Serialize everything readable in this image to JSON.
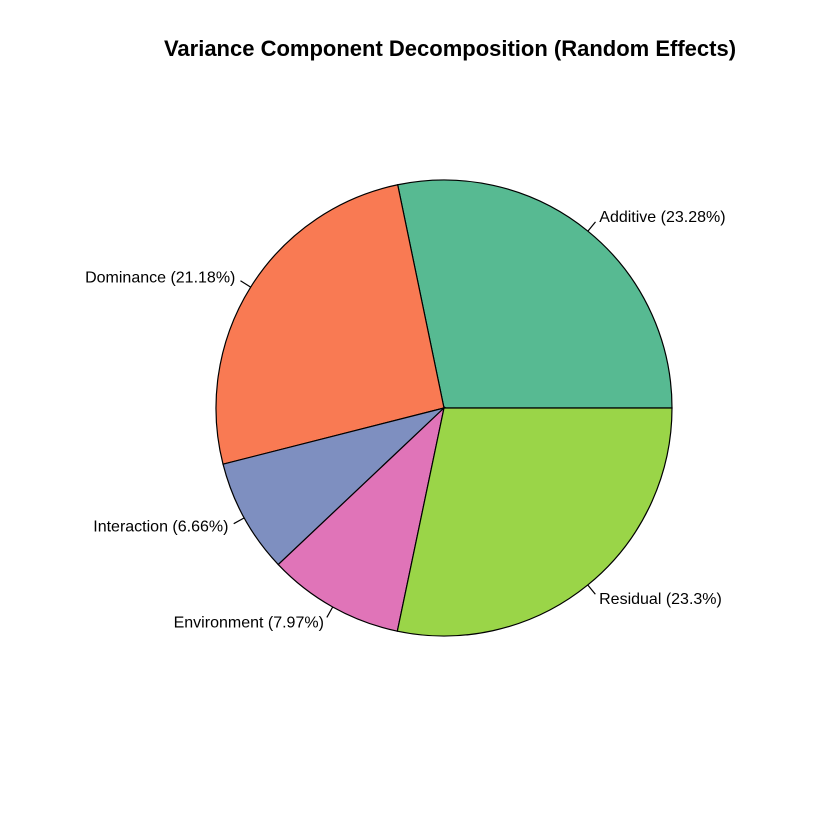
{
  "chart_data": {
    "type": "pie",
    "title": "Variance Component Decomposition (Random Effects)",
    "start_angle_deg": 0,
    "direction": "counterclockwise",
    "slices": [
      {
        "name": "Additive",
        "value": 23.28,
        "label": "Additive (23.28%)",
        "color": "#57BA92"
      },
      {
        "name": "Dominance",
        "value": 21.18,
        "label": "Dominance (21.18%)",
        "color": "#F97A53"
      },
      {
        "name": "Interaction",
        "value": 6.66,
        "label": "Interaction (6.66%)",
        "color": "#7E8FC0"
      },
      {
        "name": "Environment",
        "value": 7.97,
        "label": "Environment (7.97%)",
        "color": "#E074B8"
      },
      {
        "name": "Residual",
        "value": 23.3,
        "label": "Residual (23.3%)",
        "color": "#9AD548"
      }
    ]
  }
}
